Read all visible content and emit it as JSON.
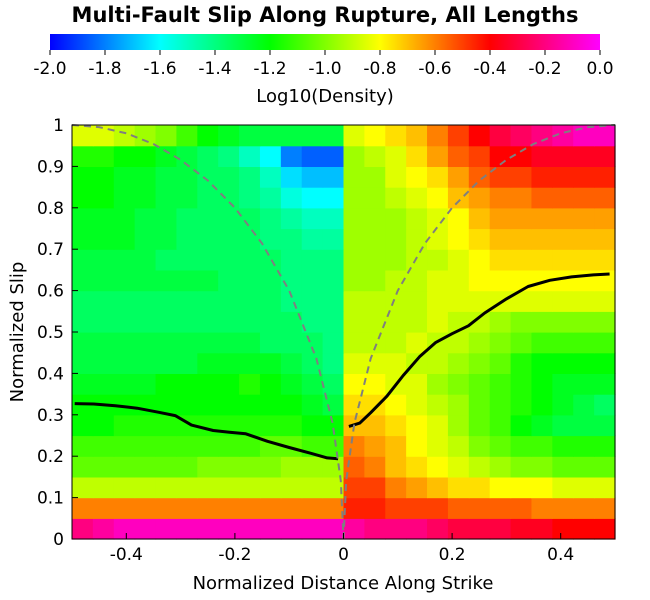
{
  "chart_data": {
    "type": "heatmap",
    "title": "Multi-Fault Slip Along Rupture, All Lengths",
    "xlabel": "Normalized Distance Along Strike",
    "ylabel": "Normalized Slip",
    "xlim": [
      -0.5,
      0.5
    ],
    "ylim": [
      0,
      1
    ],
    "x_ticks": [
      "-0.4",
      "-0.2",
      "0",
      "0.2",
      "0.4"
    ],
    "x_tick_values": [
      -0.4,
      -0.2,
      0,
      0.2,
      0.4
    ],
    "y_ticks": [
      "0",
      "0.1",
      "0.2",
      "0.3",
      "0.4",
      "0.5",
      "0.6",
      "0.7",
      "0.8",
      "0.9",
      "1"
    ],
    "y_tick_values": [
      0,
      0.1,
      0.2,
      0.3,
      0.4,
      0.5,
      0.6,
      0.7,
      0.8,
      0.9,
      1
    ],
    "colorbar": {
      "label": "Log10(Density)",
      "range": [
        -2.0,
        0.0
      ],
      "ticks": [
        "-2.0",
        "-1.8",
        "-1.6",
        "-1.4",
        "-1.2",
        "-1.0",
        "-0.8",
        "-0.6",
        "-0.4",
        "-0.2",
        "0.0"
      ],
      "tick_values": [
        -2.0,
        -1.8,
        -1.6,
        -1.4,
        -1.2,
        -1.0,
        -0.8,
        -0.6,
        -0.4,
        -0.2,
        0.0
      ],
      "colormap": [
        "#0000ff",
        "#00ffff",
        "#00ff00",
        "#ffff00",
        "#ff0000",
        "#ff00ff"
      ]
    },
    "grid_x_bins": 26,
    "grid_y_bins": 20,
    "density_rows_bottom_to_top": [
      [
        -0.2,
        -0.15,
        -0.1,
        -0.1,
        -0.1,
        -0.1,
        -0.1,
        -0.1,
        -0.1,
        -0.1,
        -0.1,
        -0.1,
        -0.1,
        -0.15,
        -0.2,
        -0.2,
        -0.2,
        -0.25,
        -0.3,
        -0.3,
        -0.3,
        -0.35,
        -0.35,
        -0.4,
        -0.4,
        -0.4
      ],
      [
        -0.6,
        -0.6,
        -0.6,
        -0.6,
        -0.6,
        -0.6,
        -0.6,
        -0.6,
        -0.6,
        -0.6,
        -0.6,
        -0.6,
        -0.6,
        -0.45,
        -0.45,
        -0.5,
        -0.5,
        -0.5,
        -0.55,
        -0.55,
        -0.55,
        -0.55,
        -0.6,
        -0.6,
        -0.6,
        -0.6
      ],
      [
        -0.9,
        -0.9,
        -0.9,
        -0.9,
        -0.9,
        -0.9,
        -0.9,
        -0.9,
        -0.9,
        -0.9,
        -0.9,
        -0.9,
        -0.9,
        -0.5,
        -0.5,
        -0.6,
        -0.65,
        -0.7,
        -0.75,
        -0.75,
        -0.8,
        -0.8,
        -0.8,
        -0.85,
        -0.85,
        -0.85
      ],
      [
        -1.05,
        -1.05,
        -1.05,
        -1.05,
        -1.05,
        -1.05,
        -1.0,
        -1.0,
        -1.0,
        -1.0,
        -0.95,
        -0.95,
        -0.95,
        -0.55,
        -0.6,
        -0.7,
        -0.75,
        -0.8,
        -0.85,
        -0.9,
        -0.95,
        -1.0,
        -1.0,
        -1.05,
        -1.05,
        -1.05
      ],
      [
        -1.1,
        -1.1,
        -1.1,
        -1.1,
        -1.1,
        -1.1,
        -1.1,
        -1.1,
        -1.1,
        -1.05,
        -1.05,
        -1.1,
        -1.1,
        -0.6,
        -0.65,
        -0.7,
        -0.8,
        -0.85,
        -0.9,
        -1.0,
        -1.05,
        -1.1,
        -1.1,
        -1.15,
        -1.15,
        -1.15
      ],
      [
        -1.2,
        -1.2,
        -1.15,
        -1.15,
        -1.15,
        -1.15,
        -1.15,
        -1.15,
        -1.15,
        -1.15,
        -1.15,
        -1.2,
        -1.2,
        -0.7,
        -0.7,
        -0.75,
        -0.8,
        -0.85,
        -0.95,
        -1.05,
        -1.1,
        -1.2,
        -1.25,
        -1.3,
        -1.3,
        -1.3
      ],
      [
        -1.2,
        -1.2,
        -1.2,
        -1.2,
        -1.2,
        -1.2,
        -1.2,
        -1.2,
        -1.2,
        -1.2,
        -1.2,
        -1.25,
        -1.3,
        -0.75,
        -0.75,
        -0.8,
        -0.85,
        -0.9,
        -0.95,
        -1.05,
        -1.1,
        -1.15,
        -1.2,
        -1.25,
        -1.3,
        -1.35
      ],
      [
        -1.25,
        -1.25,
        -1.25,
        -1.25,
        -1.2,
        -1.2,
        -1.2,
        -1.2,
        -1.15,
        -1.2,
        -1.25,
        -1.3,
        -1.35,
        -0.8,
        -0.8,
        -0.85,
        -0.85,
        -0.95,
        -1.0,
        -1.05,
        -1.1,
        -1.15,
        -1.2,
        -1.25,
        -1.25,
        -1.25
      ],
      [
        -1.3,
        -1.3,
        -1.3,
        -1.3,
        -1.3,
        -1.3,
        -1.25,
        -1.25,
        -1.25,
        -1.25,
        -1.3,
        -1.35,
        -1.4,
        -0.85,
        -0.85,
        -0.85,
        -0.9,
        -0.9,
        -0.95,
        -1.0,
        -1.05,
        -1.15,
        -1.2,
        -1.2,
        -1.2,
        -1.2
      ],
      [
        -1.3,
        -1.3,
        -1.3,
        -1.3,
        -1.3,
        -1.3,
        -1.3,
        -1.3,
        -1.3,
        -1.35,
        -1.35,
        -1.35,
        -1.4,
        -0.9,
        -0.9,
        -0.9,
        -0.85,
        -0.9,
        -0.9,
        -0.95,
        -1.0,
        -1.05,
        -1.1,
        -1.1,
        -1.1,
        -1.1
      ],
      [
        -1.35,
        -1.35,
        -1.35,
        -1.35,
        -1.35,
        -1.35,
        -1.35,
        -1.35,
        -1.35,
        -1.35,
        -1.35,
        -1.4,
        -1.4,
        -0.9,
        -0.9,
        -0.9,
        -0.9,
        -0.85,
        -0.9,
        -0.9,
        -0.95,
        -1.0,
        -1.0,
        -1.0,
        -1.0,
        -1.0
      ],
      [
        -1.35,
        -1.35,
        -1.35,
        -1.35,
        -1.35,
        -1.35,
        -1.35,
        -1.35,
        -1.35,
        -1.35,
        -1.4,
        -1.4,
        -1.4,
        -0.9,
        -0.9,
        -0.9,
        -0.9,
        -0.85,
        -0.85,
        -0.85,
        -0.85,
        -0.85,
        -0.85,
        -0.85,
        -0.85,
        -0.85
      ],
      [
        -1.3,
        -1.3,
        -1.3,
        -1.3,
        -1.3,
        -1.3,
        -1.3,
        -1.35,
        -1.35,
        -1.35,
        -1.4,
        -1.4,
        -1.4,
        -0.95,
        -0.95,
        -0.9,
        -0.9,
        -0.85,
        -0.85,
        -0.8,
        -0.8,
        -0.8,
        -0.8,
        -0.8,
        -0.8,
        -0.8
      ],
      [
        -1.3,
        -1.3,
        -1.3,
        -1.3,
        -1.35,
        -1.35,
        -1.35,
        -1.35,
        -1.35,
        -1.35,
        -1.4,
        -1.4,
        -1.4,
        -0.95,
        -0.95,
        -0.95,
        -0.9,
        -0.9,
        -0.85,
        -0.8,
        -0.75,
        -0.75,
        -0.75,
        -0.75,
        -0.75,
        -0.75
      ],
      [
        -1.25,
        -1.25,
        -1.25,
        -1.3,
        -1.3,
        -1.35,
        -1.35,
        -1.35,
        -1.35,
        -1.4,
        -1.4,
        -1.45,
        -1.45,
        -0.95,
        -0.95,
        -0.95,
        -0.9,
        -0.85,
        -0.8,
        -0.75,
        -0.7,
        -0.7,
        -0.7,
        -0.7,
        -0.7,
        -0.7
      ],
      [
        -1.25,
        -1.25,
        -1.25,
        -1.3,
        -1.3,
        -1.35,
        -1.35,
        -1.35,
        -1.35,
        -1.4,
        -1.45,
        -1.5,
        -1.5,
        -0.95,
        -0.95,
        -0.95,
        -0.9,
        -0.85,
        -0.8,
        -0.7,
        -0.65,
        -0.65,
        -0.65,
        -0.65,
        -0.65,
        -0.65
      ],
      [
        -1.2,
        -1.2,
        -1.25,
        -1.25,
        -1.3,
        -1.3,
        -1.35,
        -1.35,
        -1.4,
        -1.45,
        -1.55,
        -1.6,
        -1.6,
        -0.95,
        -0.95,
        -0.9,
        -0.85,
        -0.8,
        -0.7,
        -0.65,
        -0.6,
        -0.6,
        -0.55,
        -0.55,
        -0.55,
        -0.55
      ],
      [
        -1.2,
        -1.2,
        -1.25,
        -1.25,
        -1.3,
        -1.3,
        -1.35,
        -1.35,
        -1.4,
        -1.5,
        -1.65,
        -1.7,
        -1.7,
        -0.95,
        -0.95,
        -0.85,
        -0.8,
        -0.75,
        -0.65,
        -0.55,
        -0.5,
        -0.5,
        -0.45,
        -0.45,
        -0.45,
        -0.45
      ],
      [
        -1.15,
        -1.15,
        -1.2,
        -1.2,
        -1.25,
        -1.3,
        -1.35,
        -1.4,
        -1.5,
        -1.6,
        -1.8,
        -1.85,
        -1.85,
        -0.95,
        -0.9,
        -0.85,
        -0.75,
        -0.65,
        -0.55,
        -0.5,
        -0.4,
        -0.4,
        -0.35,
        -0.35,
        -0.35,
        -0.35
      ],
      [
        -0.85,
        -0.85,
        -0.9,
        -0.95,
        -1.0,
        -1.1,
        -1.2,
        -1.25,
        -1.3,
        -1.3,
        -1.3,
        -1.3,
        -1.3,
        -0.85,
        -0.8,
        -0.75,
        -0.7,
        -0.6,
        -0.5,
        -0.4,
        -0.3,
        -0.25,
        -0.2,
        -0.15,
        -0.1,
        -0.1
      ]
    ],
    "series": [
      {
        "style": "solid",
        "x": [
          -0.495,
          -0.46,
          -0.42,
          -0.38,
          -0.34,
          -0.31,
          -0.28,
          -0.24,
          -0.21,
          -0.18,
          -0.14,
          -0.1,
          -0.06,
          -0.03,
          -0.01
        ],
        "y": [
          0.327,
          0.326,
          0.322,
          0.316,
          0.306,
          0.298,
          0.275,
          0.262,
          0.258,
          0.254,
          0.236,
          0.221,
          0.207,
          0.196,
          0.194
        ]
      },
      {
        "style": "solid",
        "x": [
          0.01,
          0.03,
          0.05,
          0.08,
          0.11,
          0.14,
          0.17,
          0.2,
          0.23,
          0.26,
          0.3,
          0.34,
          0.38,
          0.42,
          0.46,
          0.49
        ],
        "y": [
          0.272,
          0.28,
          0.305,
          0.345,
          0.395,
          0.44,
          0.475,
          0.496,
          0.515,
          0.546,
          0.58,
          0.61,
          0.625,
          0.633,
          0.638,
          0.64
        ]
      },
      {
        "style": "dashed",
        "x": [
          -0.5,
          -0.45,
          -0.4,
          -0.35,
          -0.3,
          -0.25,
          -0.2,
          -0.15,
          -0.1,
          -0.05,
          -0.02,
          -0.005,
          0
        ],
        "y": [
          1.0,
          0.995,
          0.98,
          0.954,
          0.916,
          0.866,
          0.8,
          0.714,
          0.6,
          0.436,
          0.28,
          0.141,
          0
        ]
      },
      {
        "style": "dashed",
        "x": [
          0,
          0.005,
          0.02,
          0.05,
          0.1,
          0.15,
          0.2,
          0.25,
          0.3,
          0.35,
          0.4,
          0.45,
          0.5
        ],
        "y": [
          0,
          0.141,
          0.28,
          0.436,
          0.6,
          0.714,
          0.8,
          0.866,
          0.916,
          0.954,
          0.98,
          0.995,
          1.0
        ]
      }
    ]
  }
}
